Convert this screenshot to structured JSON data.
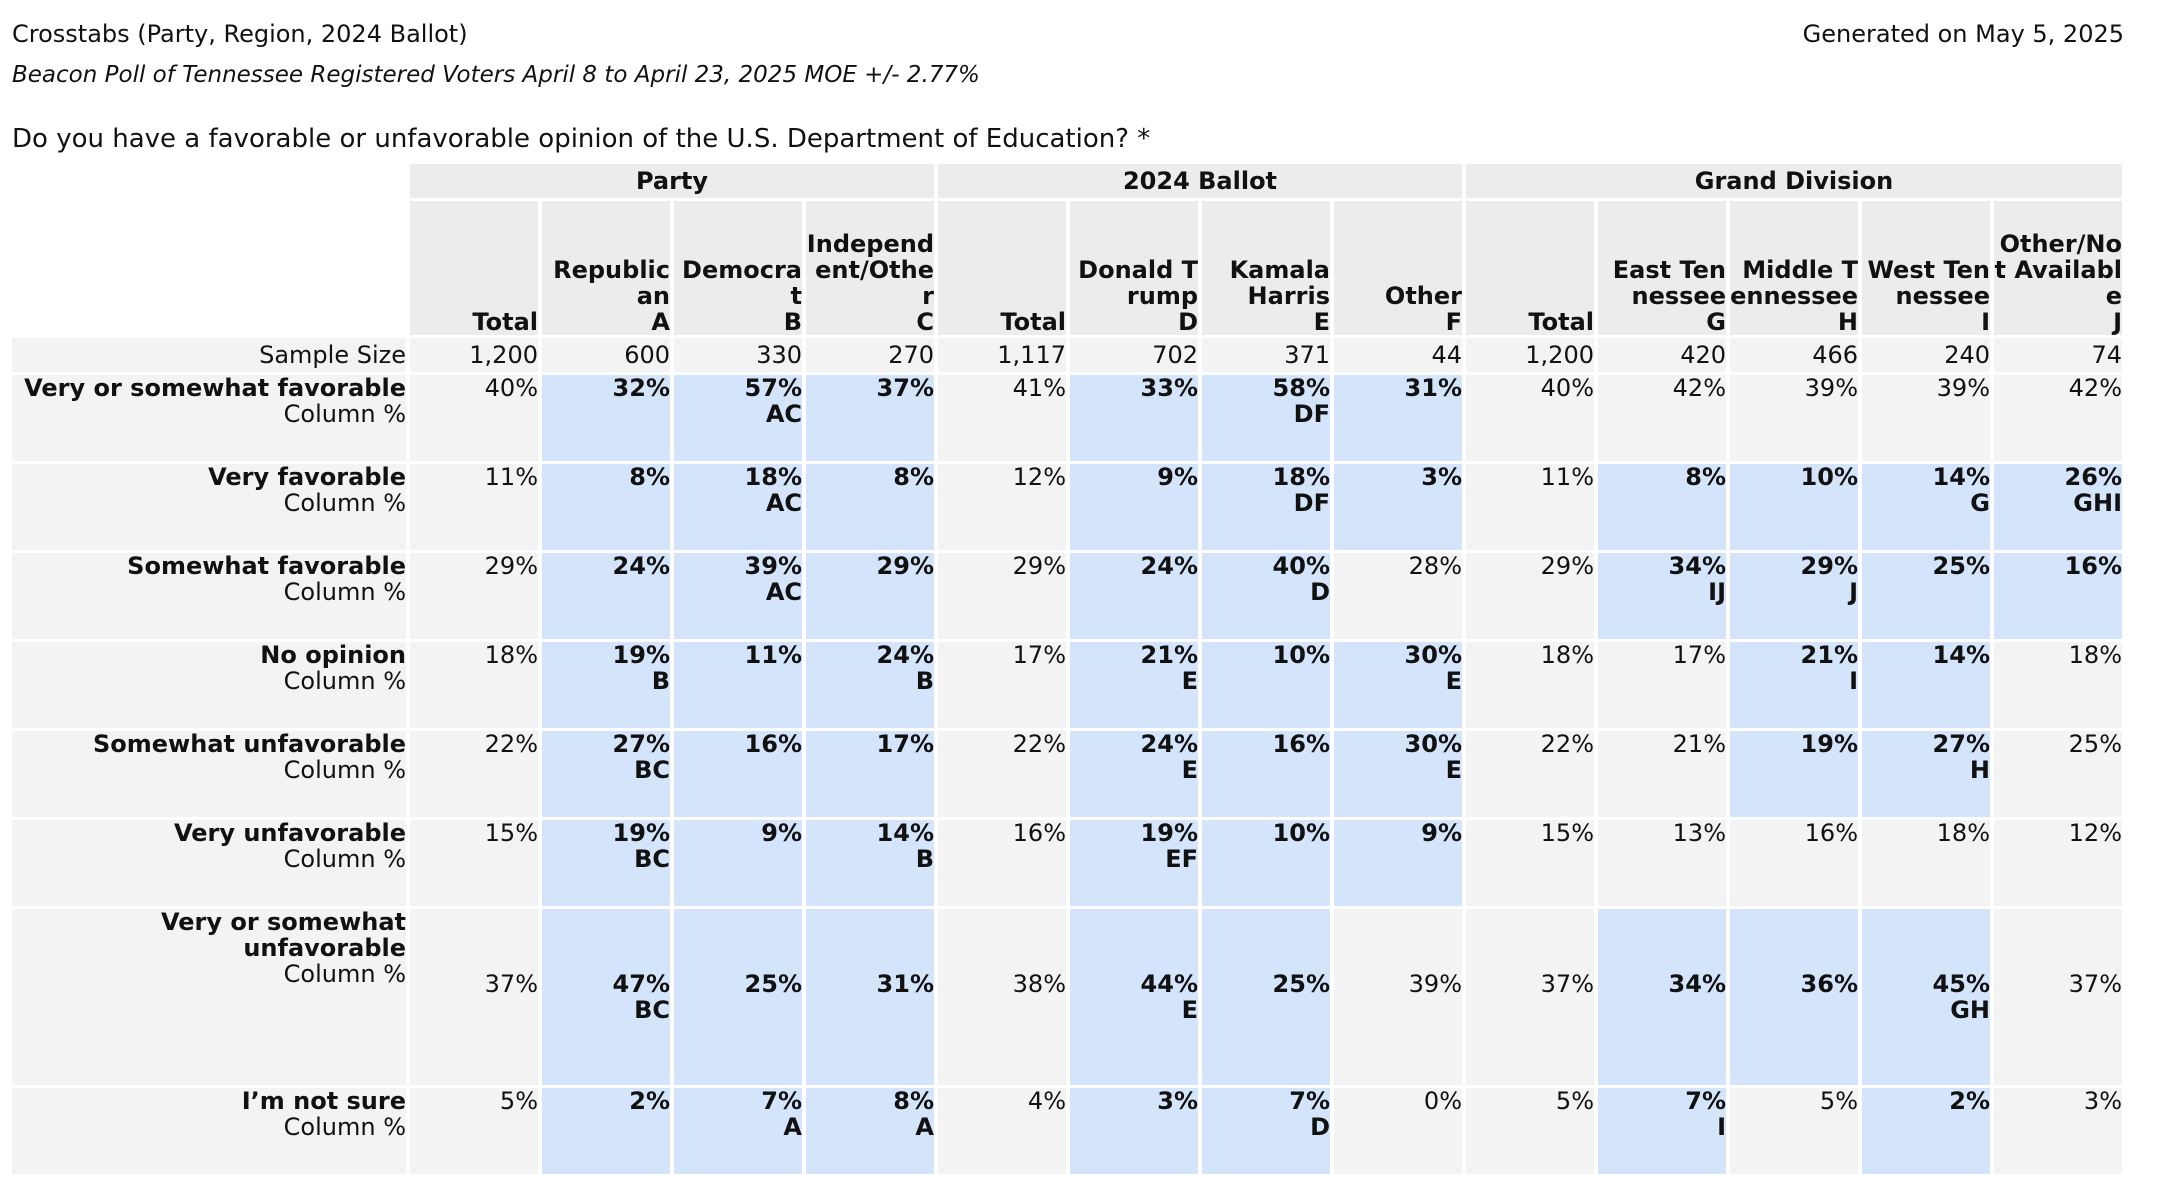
{
  "header": {
    "title": "Crosstabs (Party, Region, 2024 Ballot)",
    "generated": "Generated on May 5, 2025",
    "subtitle": "Beacon Poll of Tennessee Registered Voters April 8 to April 23, 2025 MOE +/- 2.77%"
  },
  "question": "Do you have a favorable or unfavorable opinion of the U.S. Department of Education? *",
  "colors": {
    "highlight": "#d3e4fb",
    "cell_bg": "#f3f3f3",
    "header_bg": "#ececec"
  },
  "groups": [
    "Party",
    "2024 Ballot",
    "Grand Division"
  ],
  "columns": [
    {
      "name": "Total",
      "letter": ""
    },
    {
      "name": "Republican",
      "letter": "A"
    },
    {
      "name": "Democrat",
      "letter": "B"
    },
    {
      "name": "Independent/Other",
      "letter": "C"
    },
    {
      "name": "Total",
      "letter": ""
    },
    {
      "name": "Donald Trump",
      "letter": "D"
    },
    {
      "name": "Kamala Harris",
      "letter": "E"
    },
    {
      "name": "Other",
      "letter": "F"
    },
    {
      "name": "Total",
      "letter": ""
    },
    {
      "name": "East Tennessee",
      "letter": "G"
    },
    {
      "name": "Middle Tennessee",
      "letter": "H"
    },
    {
      "name": "West Tennessee",
      "letter": "I"
    },
    {
      "name": "Other/Not Available",
      "letter": "J"
    }
  ],
  "sample_size": {
    "label": "Sample Size",
    "values": [
      "1,200",
      "600",
      "330",
      "270",
      "1,117",
      "702",
      "371",
      "44",
      "1,200",
      "420",
      "466",
      "240",
      "74"
    ]
  },
  "stat_label": "Column %",
  "rows": [
    {
      "label": "Very or somewhat favorable",
      "cells": [
        {
          "v": "40%",
          "s": "",
          "h": false
        },
        {
          "v": "32%",
          "s": "",
          "h": true
        },
        {
          "v": "57%",
          "s": "AC",
          "h": true
        },
        {
          "v": "37%",
          "s": "",
          "h": true
        },
        {
          "v": "41%",
          "s": "",
          "h": false
        },
        {
          "v": "33%",
          "s": "",
          "h": true
        },
        {
          "v": "58%",
          "s": "DF",
          "h": true
        },
        {
          "v": "31%",
          "s": "",
          "h": true
        },
        {
          "v": "40%",
          "s": "",
          "h": false
        },
        {
          "v": "42%",
          "s": "",
          "h": false
        },
        {
          "v": "39%",
          "s": "",
          "h": false
        },
        {
          "v": "39%",
          "s": "",
          "h": false
        },
        {
          "v": "42%",
          "s": "",
          "h": false
        }
      ]
    },
    {
      "label": "Very favorable",
      "cells": [
        {
          "v": "11%",
          "s": "",
          "h": false
        },
        {
          "v": "8%",
          "s": "",
          "h": true
        },
        {
          "v": "18%",
          "s": "AC",
          "h": true
        },
        {
          "v": "8%",
          "s": "",
          "h": true
        },
        {
          "v": "12%",
          "s": "",
          "h": false
        },
        {
          "v": "9%",
          "s": "",
          "h": true
        },
        {
          "v": "18%",
          "s": "DF",
          "h": true
        },
        {
          "v": "3%",
          "s": "",
          "h": true
        },
        {
          "v": "11%",
          "s": "",
          "h": false
        },
        {
          "v": "8%",
          "s": "",
          "h": true
        },
        {
          "v": "10%",
          "s": "",
          "h": true
        },
        {
          "v": "14%",
          "s": "G",
          "h": true
        },
        {
          "v": "26%",
          "s": "GHI",
          "h": true
        }
      ]
    },
    {
      "label": "Somewhat favorable",
      "cells": [
        {
          "v": "29%",
          "s": "",
          "h": false
        },
        {
          "v": "24%",
          "s": "",
          "h": true
        },
        {
          "v": "39%",
          "s": "AC",
          "h": true
        },
        {
          "v": "29%",
          "s": "",
          "h": true
        },
        {
          "v": "29%",
          "s": "",
          "h": false
        },
        {
          "v": "24%",
          "s": "",
          "h": true
        },
        {
          "v": "40%",
          "s": "D",
          "h": true
        },
        {
          "v": "28%",
          "s": "",
          "h": false
        },
        {
          "v": "29%",
          "s": "",
          "h": false
        },
        {
          "v": "34%",
          "s": "IJ",
          "h": true
        },
        {
          "v": "29%",
          "s": "J",
          "h": true
        },
        {
          "v": "25%",
          "s": "",
          "h": true
        },
        {
          "v": "16%",
          "s": "",
          "h": true
        }
      ]
    },
    {
      "label": "No opinion",
      "cells": [
        {
          "v": "18%",
          "s": "",
          "h": false
        },
        {
          "v": "19%",
          "s": "B",
          "h": true
        },
        {
          "v": "11%",
          "s": "",
          "h": true
        },
        {
          "v": "24%",
          "s": "B",
          "h": true
        },
        {
          "v": "17%",
          "s": "",
          "h": false
        },
        {
          "v": "21%",
          "s": "E",
          "h": true
        },
        {
          "v": "10%",
          "s": "",
          "h": true
        },
        {
          "v": "30%",
          "s": "E",
          "h": true
        },
        {
          "v": "18%",
          "s": "",
          "h": false
        },
        {
          "v": "17%",
          "s": "",
          "h": false
        },
        {
          "v": "21%",
          "s": "I",
          "h": true
        },
        {
          "v": "14%",
          "s": "",
          "h": true
        },
        {
          "v": "18%",
          "s": "",
          "h": false
        }
      ]
    },
    {
      "label": "Somewhat unfavorable",
      "cells": [
        {
          "v": "22%",
          "s": "",
          "h": false
        },
        {
          "v": "27%",
          "s": "BC",
          "h": true
        },
        {
          "v": "16%",
          "s": "",
          "h": true
        },
        {
          "v": "17%",
          "s": "",
          "h": true
        },
        {
          "v": "22%",
          "s": "",
          "h": false
        },
        {
          "v": "24%",
          "s": "E",
          "h": true
        },
        {
          "v": "16%",
          "s": "",
          "h": true
        },
        {
          "v": "30%",
          "s": "E",
          "h": true
        },
        {
          "v": "22%",
          "s": "",
          "h": false
        },
        {
          "v": "21%",
          "s": "",
          "h": false
        },
        {
          "v": "19%",
          "s": "",
          "h": true
        },
        {
          "v": "27%",
          "s": "H",
          "h": true
        },
        {
          "v": "25%",
          "s": "",
          "h": false
        }
      ]
    },
    {
      "label": "Very unfavorable",
      "cells": [
        {
          "v": "15%",
          "s": "",
          "h": false
        },
        {
          "v": "19%",
          "s": "BC",
          "h": true
        },
        {
          "v": "9%",
          "s": "",
          "h": true
        },
        {
          "v": "14%",
          "s": "B",
          "h": true
        },
        {
          "v": "16%",
          "s": "",
          "h": false
        },
        {
          "v": "19%",
          "s": "EF",
          "h": true
        },
        {
          "v": "10%",
          "s": "",
          "h": true
        },
        {
          "v": "9%",
          "s": "",
          "h": true
        },
        {
          "v": "15%",
          "s": "",
          "h": false
        },
        {
          "v": "13%",
          "s": "",
          "h": false
        },
        {
          "v": "16%",
          "s": "",
          "h": false
        },
        {
          "v": "18%",
          "s": "",
          "h": false
        },
        {
          "v": "12%",
          "s": "",
          "h": false
        }
      ]
    },
    {
      "label": "Very or somewhat unfavorable",
      "cells": [
        {
          "v": "37%",
          "s": "",
          "h": false
        },
        {
          "v": "47%",
          "s": "BC",
          "h": true
        },
        {
          "v": "25%",
          "s": "",
          "h": true
        },
        {
          "v": "31%",
          "s": "",
          "h": true
        },
        {
          "v": "38%",
          "s": "",
          "h": false
        },
        {
          "v": "44%",
          "s": "E",
          "h": true
        },
        {
          "v": "25%",
          "s": "",
          "h": true
        },
        {
          "v": "39%",
          "s": "",
          "h": false
        },
        {
          "v": "37%",
          "s": "",
          "h": false
        },
        {
          "v": "34%",
          "s": "",
          "h": true
        },
        {
          "v": "36%",
          "s": "",
          "h": true
        },
        {
          "v": "45%",
          "s": "GH",
          "h": true
        },
        {
          "v": "37%",
          "s": "",
          "h": false
        }
      ]
    },
    {
      "label": "I’m not sure",
      "cells": [
        {
          "v": "5%",
          "s": "",
          "h": false
        },
        {
          "v": "2%",
          "s": "",
          "h": true
        },
        {
          "v": "7%",
          "s": "A",
          "h": true
        },
        {
          "v": "8%",
          "s": "A",
          "h": true
        },
        {
          "v": "4%",
          "s": "",
          "h": false
        },
        {
          "v": "3%",
          "s": "",
          "h": true
        },
        {
          "v": "7%",
          "s": "D",
          "h": true
        },
        {
          "v": "0%",
          "s": "",
          "h": false
        },
        {
          "v": "5%",
          "s": "",
          "h": false
        },
        {
          "v": "7%",
          "s": "I",
          "h": true
        },
        {
          "v": "5%",
          "s": "",
          "h": false
        },
        {
          "v": "2%",
          "s": "",
          "h": true
        },
        {
          "v": "3%",
          "s": "",
          "h": false
        }
      ]
    }
  ]
}
